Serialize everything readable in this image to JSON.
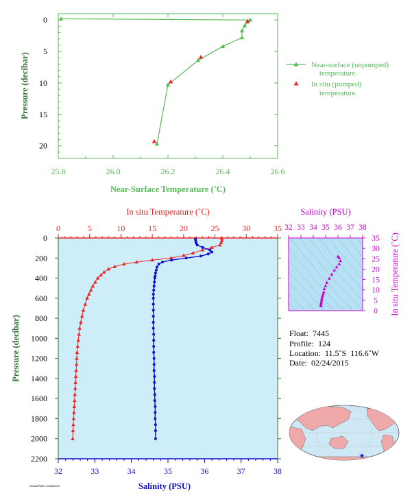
{
  "colors": {
    "green": "#55bb55",
    "red": "#ee2222",
    "blue": "#1111cc",
    "magenta": "#cc00cc",
    "darkgreen": "#2f6f2f",
    "panel_bg": "#cdeef8",
    "inset_bg": "#b6e0f4",
    "map_land": "#f0a8a8",
    "map_ocean": "#cfe8f6"
  },
  "chart_data": [
    {
      "type": "line",
      "name": "near-surface-temperature",
      "xlabel": "Near-Surface Temperature (˚C)",
      "ylabel": "Pressure (decibar)",
      "xlim": [
        25.8,
        26.6
      ],
      "ylim": [
        22,
        -1
      ],
      "x_ticks": [
        "25.8",
        "26.0",
        "26.2",
        "26.4",
        "26.6"
      ],
      "y_ticks": [
        "0",
        "5",
        "10",
        "15",
        "20"
      ],
      "legend": {
        "placement": "right",
        "entries": [
          "Near-surface (unpumped)",
          "temperature.",
          "In situ (pumped)",
          "temperature."
        ]
      },
      "series": [
        {
          "name": "Near-surface (unpumped) temperature.",
          "points": [
            [
              25.81,
              -0.2
            ],
            [
              26.5,
              0.0
            ],
            [
              26.49,
              0.3
            ],
            [
              26.48,
              0.9
            ],
            [
              26.47,
              1.7
            ],
            [
              26.47,
              2.8
            ],
            [
              26.4,
              4.2
            ],
            [
              26.31,
              6.4
            ],
            [
              26.2,
              10.3
            ],
            [
              26.16,
              19.7
            ]
          ]
        },
        {
          "name": "In situ (pumped) temperature.",
          "points": [
            [
              26.49,
              0.2
            ],
            [
              26.32,
              5.9
            ],
            [
              26.21,
              9.8
            ],
            [
              26.15,
              19.3
            ]
          ]
        }
      ]
    },
    {
      "type": "line",
      "name": "profile",
      "x_top_label": "In situ Temperature (˚C)",
      "x_bottom_label": "Salinity (PSU)",
      "ylabel": "Pressure (decibar)",
      "temp_lim": [
        0,
        35
      ],
      "sal_lim": [
        32,
        38
      ],
      "ylim": [
        2200,
        0
      ],
      "temp_ticks": [
        "0",
        "5",
        "10",
        "15",
        "20",
        "25",
        "30",
        "35"
      ],
      "sal_ticks": [
        "32",
        "33",
        "34",
        "35",
        "36",
        "37",
        "38"
      ],
      "y_ticks": [
        "0",
        "200",
        "400",
        "600",
        "800",
        "1000",
        "1200",
        "1400",
        "1600",
        "1800",
        "2000",
        "2200"
      ],
      "temperature": [
        [
          26.1,
          5
        ],
        [
          26.1,
          25
        ],
        [
          26.0,
          45
        ],
        [
          25.8,
          70
        ],
        [
          24.5,
          95
        ],
        [
          23.0,
          120
        ],
        [
          21.5,
          150
        ],
        [
          20.0,
          175
        ],
        [
          18.0,
          200
        ],
        [
          15.0,
          220
        ],
        [
          12.5,
          240
        ],
        [
          10.5,
          260
        ],
        [
          9.0,
          285
        ],
        [
          8.0,
          310
        ],
        [
          7.3,
          340
        ],
        [
          6.8,
          370
        ],
        [
          6.3,
          400
        ],
        [
          5.9,
          440
        ],
        [
          5.5,
          480
        ],
        [
          5.2,
          520
        ],
        [
          4.9,
          560
        ],
        [
          4.6,
          600
        ],
        [
          4.3,
          660
        ],
        [
          4.0,
          720
        ],
        [
          3.8,
          780
        ],
        [
          3.6,
          840
        ],
        [
          3.4,
          900
        ],
        [
          3.3,
          960
        ],
        [
          3.2,
          1020
        ],
        [
          3.1,
          1080
        ],
        [
          3.0,
          1140
        ],
        [
          2.95,
          1200
        ],
        [
          2.9,
          1260
        ],
        [
          2.85,
          1320
        ],
        [
          2.8,
          1380
        ],
        [
          2.75,
          1440
        ],
        [
          2.7,
          1500
        ],
        [
          2.65,
          1560
        ],
        [
          2.6,
          1620
        ],
        [
          2.55,
          1680
        ],
        [
          2.5,
          1740
        ],
        [
          2.45,
          1800
        ],
        [
          2.4,
          1860
        ],
        [
          2.35,
          1920
        ],
        [
          2.3,
          2000
        ]
      ],
      "salinity": [
        [
          35.75,
          10
        ],
        [
          35.76,
          30
        ],
        [
          35.77,
          50
        ],
        [
          35.8,
          70
        ],
        [
          35.95,
          95
        ],
        [
          36.15,
          120
        ],
        [
          36.2,
          140
        ],
        [
          36.1,
          160
        ],
        [
          35.9,
          180
        ],
        [
          35.5,
          200
        ],
        [
          35.1,
          220
        ],
        [
          34.85,
          240
        ],
        [
          34.75,
          260
        ],
        [
          34.7,
          290
        ],
        [
          34.68,
          320
        ],
        [
          34.66,
          350
        ],
        [
          34.65,
          380
        ],
        [
          34.64,
          400
        ],
        [
          34.63,
          440
        ],
        [
          34.62,
          480
        ],
        [
          34.61,
          520
        ],
        [
          34.6,
          560
        ],
        [
          34.6,
          600
        ],
        [
          34.6,
          660
        ],
        [
          34.6,
          720
        ],
        [
          34.6,
          780
        ],
        [
          34.6,
          840
        ],
        [
          34.6,
          900
        ],
        [
          34.61,
          960
        ],
        [
          34.61,
          1020
        ],
        [
          34.61,
          1080
        ],
        [
          34.61,
          1140
        ],
        [
          34.62,
          1200
        ],
        [
          34.62,
          1260
        ],
        [
          34.62,
          1320
        ],
        [
          34.63,
          1380
        ],
        [
          34.63,
          1440
        ],
        [
          34.63,
          1500
        ],
        [
          34.64,
          1560
        ],
        [
          34.64,
          1620
        ],
        [
          34.65,
          1680
        ],
        [
          34.65,
          1740
        ],
        [
          34.65,
          1800
        ],
        [
          34.66,
          1860
        ],
        [
          34.66,
          1920
        ],
        [
          34.66,
          2000
        ]
      ]
    },
    {
      "type": "scatter",
      "name": "ts-diagram",
      "xlabel": "Salinity (PSU)",
      "ylabel": "In situ Temperature (˚C)",
      "xlim": [
        32,
        38
      ],
      "ylim": [
        0,
        35
      ],
      "x_ticks": [
        "32",
        "33",
        "34",
        "35",
        "36",
        "37",
        "38"
      ],
      "y_ticks": [
        "0",
        "5",
        "10",
        "15",
        "20",
        "25",
        "30",
        "35"
      ],
      "points": [
        [
          36.0,
          26.1
        ],
        [
          36.1,
          25.5
        ],
        [
          36.2,
          24.0
        ],
        [
          36.1,
          22.5
        ],
        [
          35.9,
          21.0
        ],
        [
          35.7,
          19.5
        ],
        [
          35.5,
          17.5
        ],
        [
          35.3,
          15.5
        ],
        [
          35.1,
          13.5
        ],
        [
          35.0,
          12.0
        ],
        [
          34.9,
          10.5
        ],
        [
          34.85,
          9.0
        ],
        [
          34.8,
          8.0
        ],
        [
          34.75,
          7.0
        ],
        [
          34.7,
          6.0
        ],
        [
          34.68,
          5.2
        ],
        [
          34.66,
          4.5
        ],
        [
          34.64,
          3.8
        ],
        [
          34.63,
          3.2
        ],
        [
          34.62,
          2.7
        ],
        [
          34.62,
          2.3
        ]
      ]
    }
  ],
  "info": {
    "float": "Float:  7445",
    "profile": "Profile:  124",
    "location": "Location:  11.5˚S  116.6˚W",
    "date": "Date:  02/24/2015"
  },
  "footer_code": "NOAA/PMEL 02/26/2015"
}
